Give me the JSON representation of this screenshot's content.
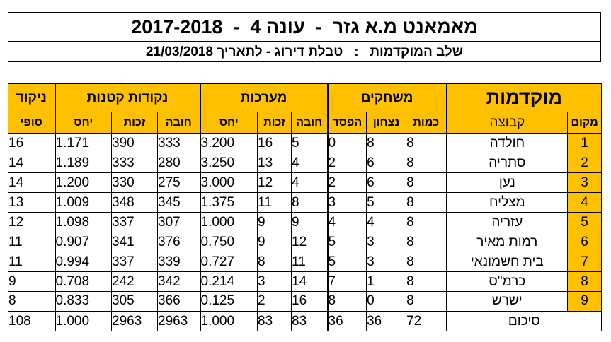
{
  "header": {
    "title": "מאמאנט מ.א גזר  -  עונה 4  -  2017-2018",
    "subtitle": "שלב המוקדמות   :   טבלת דירוג - לתאריך 21/03/2018"
  },
  "table": {
    "main_title": "מוקדמות",
    "groups": {
      "games": "משחקים",
      "sets": "מערכות",
      "points": "נקודות קטנות",
      "final_score_top": "ניקוד"
    },
    "columns": {
      "rank": "מקום",
      "team": "קבוצה",
      "played": "כמות",
      "won": "נצחון",
      "lost": "הפסד",
      "sets_lost": "חובה",
      "sets_won": "זכות",
      "sets_ratio": "יחס",
      "points_lost": "חובה",
      "points_won": "זכות",
      "points_ratio": "יחס",
      "final_score_bottom": "סופי"
    },
    "rows": [
      {
        "rank": "1",
        "team": "חולדה",
        "played": "8",
        "won": "8",
        "lost": "0",
        "sets_lost": "5",
        "sets_won": "16",
        "sets_ratio": "3.200",
        "points_lost": "333",
        "points_won": "390",
        "points_ratio": "1.171",
        "score": "16"
      },
      {
        "rank": "2",
        "team": "סתריה",
        "played": "8",
        "won": "6",
        "lost": "2",
        "sets_lost": "4",
        "sets_won": "13",
        "sets_ratio": "3.250",
        "points_lost": "280",
        "points_won": "333",
        "points_ratio": "1.189",
        "score": "14"
      },
      {
        "rank": "3",
        "team": "נען",
        "played": "8",
        "won": "6",
        "lost": "2",
        "sets_lost": "4",
        "sets_won": "12",
        "sets_ratio": "3.000",
        "points_lost": "275",
        "points_won": "330",
        "points_ratio": "1.200",
        "score": "14"
      },
      {
        "rank": "4",
        "team": "מצליח",
        "played": "8",
        "won": "5",
        "lost": "3",
        "sets_lost": "8",
        "sets_won": "11",
        "sets_ratio": "1.375",
        "points_lost": "345",
        "points_won": "348",
        "points_ratio": "1.009",
        "score": "13"
      },
      {
        "rank": "5",
        "team": "עזריה",
        "played": "8",
        "won": "4",
        "lost": "4",
        "sets_lost": "9",
        "sets_won": "9",
        "sets_ratio": "1.000",
        "points_lost": "307",
        "points_won": "337",
        "points_ratio": "1.098",
        "score": "12"
      },
      {
        "rank": "6",
        "team": "רמות מאיר",
        "played": "8",
        "won": "3",
        "lost": "5",
        "sets_lost": "12",
        "sets_won": "9",
        "sets_ratio": "0.750",
        "points_lost": "376",
        "points_won": "341",
        "points_ratio": "0.907",
        "score": "11"
      },
      {
        "rank": "7",
        "team": "בית חשמונאי",
        "played": "8",
        "won": "3",
        "lost": "5",
        "sets_lost": "11",
        "sets_won": "8",
        "sets_ratio": "0.727",
        "points_lost": "339",
        "points_won": "337",
        "points_ratio": "0.994",
        "score": "11"
      },
      {
        "rank": "8",
        "team": "כרמ\"ס",
        "played": "8",
        "won": "1",
        "lost": "7",
        "sets_lost": "14",
        "sets_won": "3",
        "sets_ratio": "0.214",
        "points_lost": "342",
        "points_won": "242",
        "points_ratio": "0.708",
        "score": "9"
      },
      {
        "rank": "9",
        "team": "ישרש",
        "played": "8",
        "won": "0",
        "lost": "8",
        "sets_lost": "16",
        "sets_won": "2",
        "sets_ratio": "0.125",
        "points_lost": "366",
        "points_won": "305",
        "points_ratio": "0.833",
        "score": "8"
      }
    ],
    "totals": {
      "label": "סיכום",
      "played": "72",
      "won": "36",
      "lost": "36",
      "sets_lost": "83",
      "sets_won": "83",
      "sets_ratio": "1.000",
      "points_lost": "2963",
      "points_won": "2963",
      "points_ratio": "1.000",
      "score": "108"
    },
    "accent_color": "#FFC000"
  }
}
